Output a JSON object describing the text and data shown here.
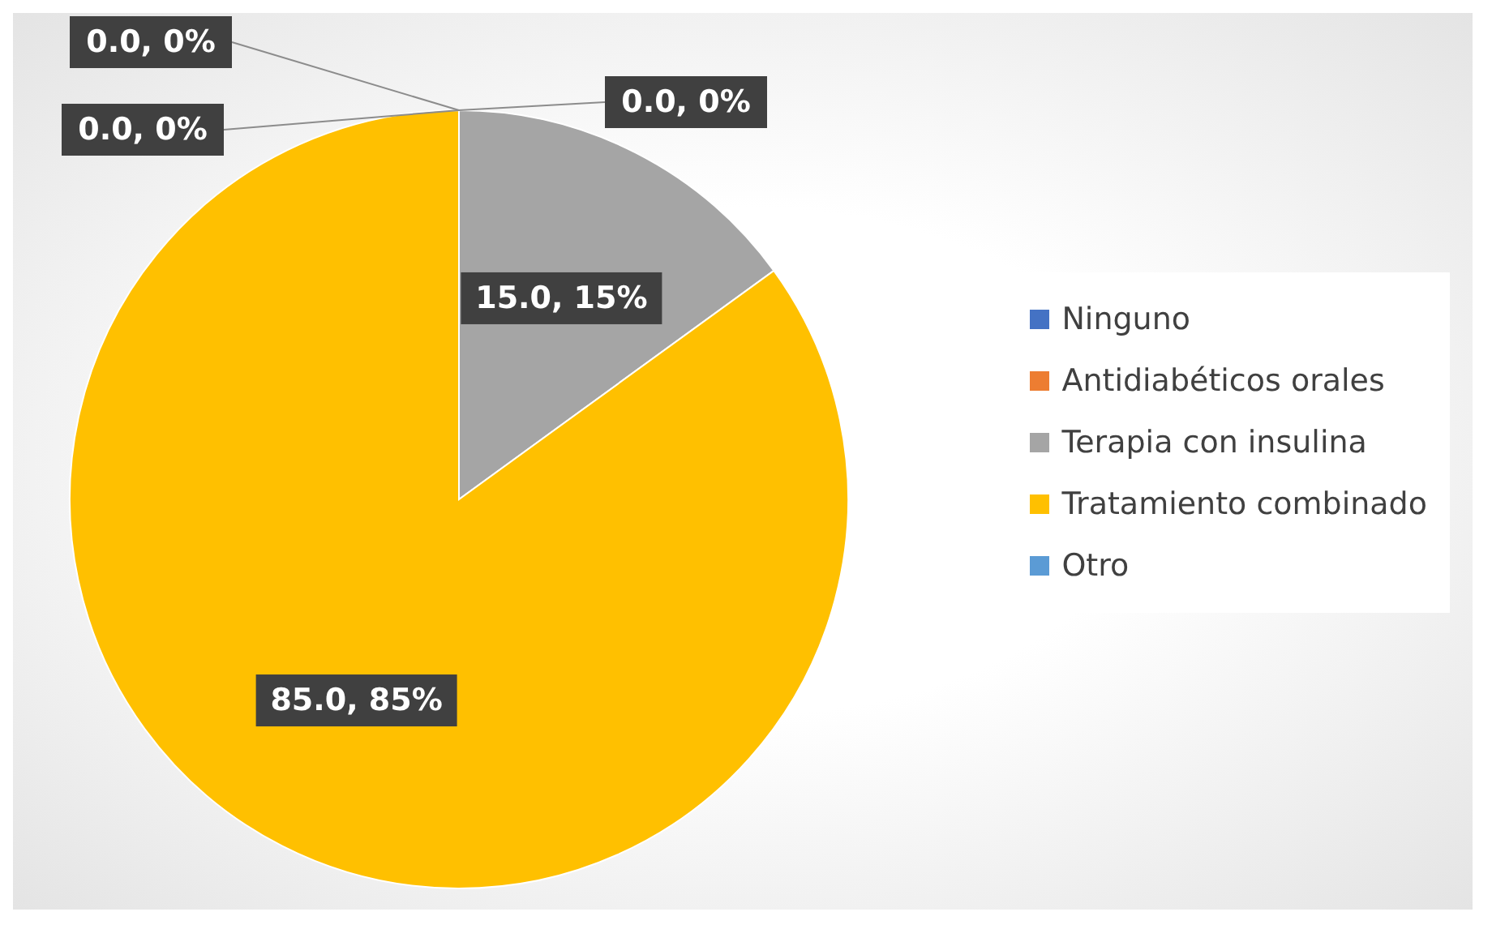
{
  "chart_data": {
    "type": "pie",
    "categories": [
      "Ninguno",
      "Antidiabéticos orales",
      "Terapia con insulina",
      "Tratamiento combinado",
      "Otro"
    ],
    "values": [
      0,
      0,
      15,
      85,
      0
    ],
    "colors": [
      "#4472c4",
      "#ed7d31",
      "#a5a5a5",
      "#ffc000",
      "#5b9bd5"
    ],
    "value_labels": [
      "0.0, 0%",
      "0.0, 0%",
      "15.0, 15%",
      "85.0, 85%",
      "0.0, 0%"
    ],
    "legend": "right"
  }
}
